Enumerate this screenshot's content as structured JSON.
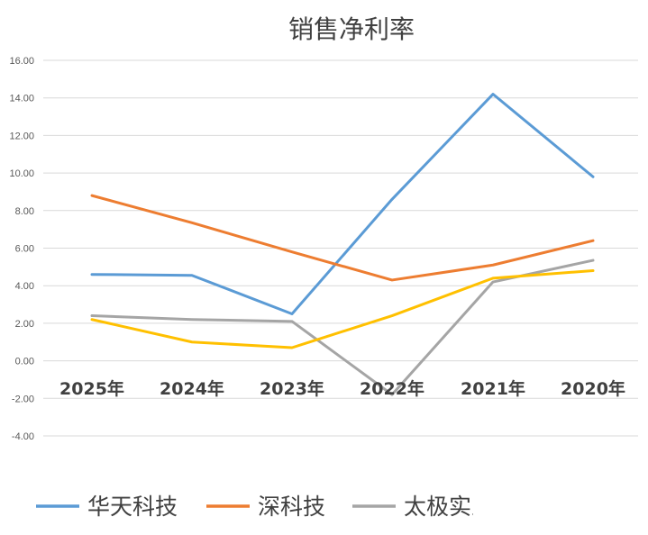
{
  "chart_data": {
    "type": "line",
    "title": "销售净利率",
    "xlabel": "",
    "ylabel": "",
    "categories": [
      "2025年",
      "2024年",
      "2023年",
      "2022年",
      "2021年",
      "2020年"
    ],
    "ylim": [
      -4,
      16
    ],
    "yticks": [
      "16.00",
      "14.00",
      "12.00",
      "10.00",
      "8.00",
      "6.00",
      "4.00",
      "2.00",
      "0.00",
      "-2.00",
      "-4.00"
    ],
    "grid": true,
    "legend_position": "bottom",
    "series": [
      {
        "name": "华天科技",
        "color": "#5b9bd5",
        "values": [
          4.6,
          4.55,
          2.5,
          8.6,
          14.2,
          9.8
        ]
      },
      {
        "name": "深科技",
        "color": "#ed7d31",
        "values": [
          8.8,
          7.35,
          5.8,
          4.3,
          5.1,
          6.4
        ]
      },
      {
        "name": "太极实业",
        "color": "#a5a5a5",
        "values": [
          2.4,
          2.2,
          2.1,
          -1.8,
          4.2,
          5.35
        ]
      },
      {
        "values": [
          2.2,
          1.0,
          0.7,
          2.4,
          4.4,
          4.8
        ],
        "color": "#ffc000"
      }
    ]
  }
}
